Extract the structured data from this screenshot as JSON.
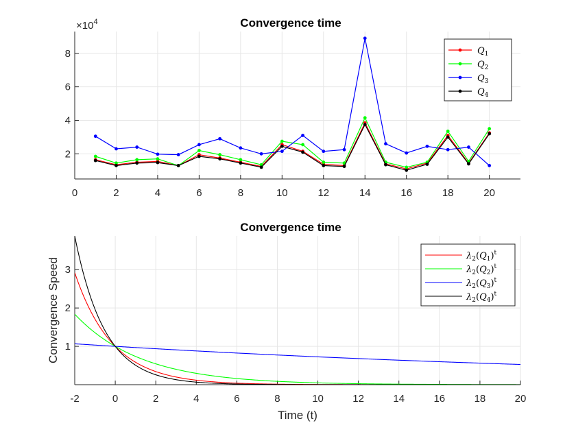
{
  "chart_data": [
    {
      "type": "line",
      "title": "Convergence time",
      "xlabel": "",
      "ylabel": "",
      "y_exponent_label": "×10",
      "y_exponent_power": "4",
      "xlim": [
        0,
        21.5
      ],
      "ylim": [
        0.5,
        9.3
      ],
      "xticks": [
        "0",
        "2",
        "4",
        "6",
        "8",
        "10",
        "12",
        "14",
        "16",
        "18",
        "20"
      ],
      "yticks": [
        "2",
        "4",
        "6",
        "8"
      ],
      "grid": true,
      "legend_position": "top-right",
      "x": [
        1,
        2,
        3,
        4,
        5,
        6,
        7,
        8,
        9,
        10,
        11,
        12,
        13,
        14,
        15,
        16,
        17,
        18,
        19,
        20
      ],
      "series": [
        {
          "name": "Q",
          "sub": "1",
          "color": "#ff0000",
          "values": [
            1.65,
            1.35,
            1.5,
            1.55,
            1.3,
            1.95,
            1.75,
            1.5,
            1.25,
            2.55,
            2.15,
            1.38,
            1.3,
            3.85,
            1.4,
            1.1,
            1.45,
            3.1,
            1.45,
            3.25
          ]
        },
        {
          "name": "Q",
          "sub": "2",
          "color": "#00ff00",
          "values": [
            1.85,
            1.45,
            1.65,
            1.7,
            1.3,
            2.2,
            1.95,
            1.65,
            1.35,
            2.75,
            2.55,
            1.5,
            1.45,
            4.15,
            1.5,
            1.2,
            1.5,
            3.35,
            1.55,
            3.5
          ]
        },
        {
          "name": "Q",
          "sub": "3",
          "color": "#0000ff",
          "values": [
            3.05,
            2.3,
            2.4,
            1.98,
            1.95,
            2.55,
            2.9,
            2.35,
            2.0,
            2.15,
            3.1,
            2.15,
            2.25,
            8.9,
            2.6,
            2.05,
            2.45,
            2.25,
            2.4,
            1.3
          ]
        },
        {
          "name": "Q",
          "sub": "4",
          "color": "#000000",
          "values": [
            1.6,
            1.3,
            1.45,
            1.48,
            1.3,
            1.85,
            1.7,
            1.45,
            1.2,
            2.45,
            2.1,
            1.3,
            1.25,
            3.75,
            1.35,
            1.02,
            1.38,
            3.0,
            1.4,
            3.2
          ]
        }
      ]
    },
    {
      "type": "line",
      "title": "Convergence time",
      "xlabel": "Time (t)",
      "ylabel": "Convergence Speed",
      "xlim": [
        -2,
        20
      ],
      "ylim": [
        0,
        3.88
      ],
      "xticks": [
        "-2",
        "0",
        "2",
        "4",
        "6",
        "8",
        "10",
        "12",
        "14",
        "16",
        "18",
        "20"
      ],
      "yticks": [
        "1",
        "2",
        "3"
      ],
      "grid": true,
      "legend_position": "top-right",
      "series": [
        {
          "name": "λ",
          "sub": "2",
          "arg": "Q",
          "argsub": "1",
          "sup": "t",
          "color": "#ff0000",
          "base": 0.585
        },
        {
          "name": "λ",
          "sub": "2",
          "arg": "Q",
          "argsub": "2",
          "sup": "t",
          "color": "#00ff00",
          "base": 0.7375
        },
        {
          "name": "λ",
          "sub": "2",
          "arg": "Q",
          "argsub": "3",
          "sup": "t",
          "color": "#0000ff",
          "base": 0.9685
        },
        {
          "name": "λ",
          "sub": "2",
          "arg": "Q",
          "argsub": "4",
          "sup": "t",
          "color": "#000000",
          "base": 0.508
        }
      ]
    }
  ]
}
